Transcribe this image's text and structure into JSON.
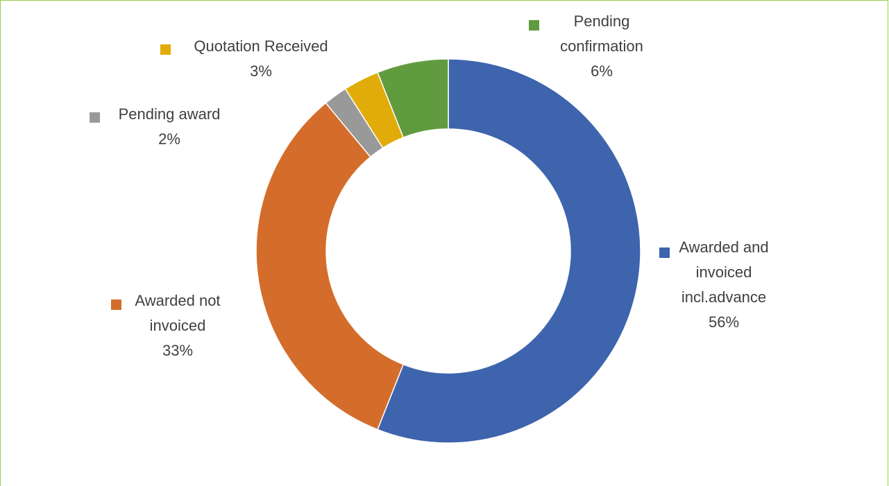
{
  "chart_data": {
    "type": "pie",
    "donut": true,
    "title": "",
    "legend": "none",
    "frame_color": "#92d050",
    "label_color": "#404040",
    "slices": [
      {
        "label_lines": [
          "Awarded and",
          "invoiced",
          "incl.advance"
        ],
        "label": "Awarded and invoiced incl.advance",
        "value": 56,
        "value_text": "56%",
        "color": "#3d64ad"
      },
      {
        "label_lines": [
          "Awarded not",
          "invoiced"
        ],
        "label": "Awarded not invoiced",
        "value": 33,
        "value_text": "33%",
        "color": "#d46d2b"
      },
      {
        "label_lines": [
          "Pending award"
        ],
        "label": "Pending award",
        "value": 2,
        "value_text": "2%",
        "color": "#999999"
      },
      {
        "label_lines": [
          "Quotation Received"
        ],
        "label": "Quotation Received",
        "value": 3,
        "value_text": "3%",
        "color": "#e1ac0a"
      },
      {
        "label_lines": [
          "Pending",
          "confirmation"
        ],
        "label": "Pending confirmation",
        "value": 6,
        "value_text": "6%",
        "color": "#619b3f"
      }
    ]
  }
}
